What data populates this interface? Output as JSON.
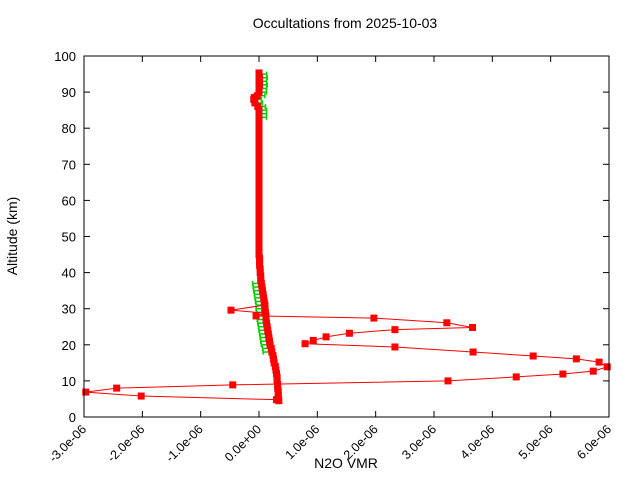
{
  "window": {
    "bg_color": "#ffffff"
  },
  "chart_data": {
    "type": "line",
    "title": "Occultations from 2025-10-03",
    "xlabel": "N2O VMR",
    "ylabel": "Altitude (km)",
    "xlim": [
      -3e-06,
      6e-06
    ],
    "ylim": [
      0,
      100
    ],
    "grid": false,
    "legend": "none",
    "axes_style": "boxed frame, inward mirrored ticks, x tick labels rotated 45deg",
    "x_tick_values": [
      -3e-06,
      -2e-06,
      -1e-06,
      0.0,
      1e-06,
      2e-06,
      3e-06,
      4e-06,
      5e-06,
      6e-06
    ],
    "x_tick_labels": [
      "-3.0e-06",
      "-2.0e-06",
      "-1.0e-06",
      "0.0e+00",
      "1.0e-06",
      "2.0e-06",
      "3.0e-06",
      "4.0e-06",
      "5.0e-06",
      "6.0e-06"
    ],
    "y_tick_values": [
      0,
      10,
      20,
      30,
      40,
      50,
      60,
      70,
      80,
      90,
      100
    ],
    "y_tick_labels": [
      "0",
      "10",
      "20",
      "30",
      "40",
      "50",
      "60",
      "70",
      "80",
      "90",
      "100"
    ],
    "colors": {
      "profile": "#ff0000",
      "error_bars": "#00cc00",
      "axis": "#000000"
    },
    "marker": "filled-square",
    "series": [
      {
        "name": "main-profile",
        "description": "dense retrieved N2O profile, points [altitude_km, vmr]",
        "color": "#ff0000",
        "points": [
          [
            95.3,
            0
          ],
          [
            95,
            0
          ],
          [
            94,
            1e-08
          ],
          [
            93,
            0
          ],
          [
            92,
            1e-08
          ],
          [
            91,
            0
          ],
          [
            90,
            0
          ],
          [
            89,
            -3e-08
          ],
          [
            88.5,
            -8e-08
          ],
          [
            88,
            -9e-08
          ],
          [
            87,
            -7e-08
          ],
          [
            86,
            -2e-08
          ],
          [
            85,
            0
          ],
          [
            84,
            0
          ],
          [
            83,
            0
          ],
          [
            82,
            0
          ],
          [
            81,
            0
          ],
          [
            80,
            0
          ],
          [
            79,
            0
          ],
          [
            78,
            0
          ],
          [
            77,
            0
          ],
          [
            76,
            0
          ],
          [
            75,
            0
          ],
          [
            74,
            0
          ],
          [
            73,
            0
          ],
          [
            72,
            0
          ],
          [
            71,
            0
          ],
          [
            70,
            0
          ],
          [
            69,
            0
          ],
          [
            68,
            0
          ],
          [
            67,
            0
          ],
          [
            66,
            0
          ],
          [
            65,
            0
          ],
          [
            64,
            0
          ],
          [
            63,
            0
          ],
          [
            62,
            0
          ],
          [
            61,
            0
          ],
          [
            60,
            0
          ],
          [
            59,
            0
          ],
          [
            58,
            0
          ],
          [
            57,
            0
          ],
          [
            56,
            0
          ],
          [
            55,
            0
          ],
          [
            54,
            0
          ],
          [
            53,
            0
          ],
          [
            52,
            0
          ],
          [
            51,
            0
          ],
          [
            50,
            0
          ],
          [
            49,
            0
          ],
          [
            48,
            0
          ],
          [
            47,
            0
          ],
          [
            46,
            0
          ],
          [
            45,
            0
          ],
          [
            44,
            1e-08
          ],
          [
            43,
            1e-08
          ],
          [
            42,
            1e-08
          ],
          [
            41,
            2e-08
          ],
          [
            40,
            2e-08
          ],
          [
            39,
            3e-08
          ],
          [
            38,
            3e-08
          ],
          [
            37,
            4e-08
          ],
          [
            36,
            5e-08
          ],
          [
            35,
            6e-08
          ],
          [
            34,
            7e-08
          ],
          [
            33,
            8e-08
          ],
          [
            32,
            9e-08
          ],
          [
            31,
            1e-07
          ],
          [
            30,
            1e-07
          ],
          [
            29,
            1.1e-07
          ],
          [
            28,
            1.2e-07
          ],
          [
            27,
            1.2e-07
          ],
          [
            26,
            1.3e-07
          ],
          [
            25,
            1.4e-07
          ],
          [
            24,
            1.5e-07
          ],
          [
            23,
            1.6e-07
          ],
          [
            22,
            1.7e-07
          ],
          [
            21,
            1.8e-07
          ],
          [
            20,
            1.9e-07
          ],
          [
            19,
            2.1e-07
          ],
          [
            18,
            2.2e-07
          ],
          [
            17,
            2.4e-07
          ],
          [
            16,
            2.5e-07
          ],
          [
            15,
            2.6e-07
          ],
          [
            14,
            2.8e-07
          ],
          [
            13,
            2.9e-07
          ],
          [
            12,
            3e-07
          ],
          [
            11,
            3.1e-07
          ],
          [
            10,
            3.1e-07
          ],
          [
            9,
            3.2e-07
          ],
          [
            8,
            3.2e-07
          ],
          [
            7,
            3.3e-07
          ],
          [
            6,
            3.3e-07
          ],
          [
            5,
            3.3e-07
          ],
          [
            4.5,
            3.4e-07
          ]
        ]
      },
      {
        "name": "noisy-profile",
        "description": "oscillating occultation profile, points [altitude_km, vmr]",
        "color": "#ff0000",
        "points": [
          [
            31.0,
            1e-07
          ],
          [
            29.6,
            -4.8e-07
          ],
          [
            28.8,
            1e-07
          ],
          [
            28.0,
            -5e-08
          ],
          [
            27.4,
            1.97e-06
          ],
          [
            26.1,
            3.22e-06
          ],
          [
            24.8,
            3.66e-06
          ],
          [
            24.2,
            2.33e-06
          ],
          [
            23.2,
            1.55e-06
          ],
          [
            22.2,
            1.15e-06
          ],
          [
            21.2,
            9.3e-07
          ],
          [
            20.3,
            7.9e-07
          ],
          [
            19.4,
            2.33e-06
          ],
          [
            18.0,
            3.67e-06
          ],
          [
            16.9,
            4.7e-06
          ],
          [
            16.1,
            5.44e-06
          ],
          [
            15.2,
            5.83e-06
          ],
          [
            13.9,
            5.97e-06
          ],
          [
            12.7,
            5.73e-06
          ],
          [
            11.9,
            5.21e-06
          ],
          [
            11.1,
            4.41e-06
          ],
          [
            10.0,
            3.24e-06
          ],
          [
            8.9,
            -4.5e-07
          ],
          [
            8.0,
            -2.44e-06
          ],
          [
            6.9,
            -2.97e-06
          ],
          [
            5.8,
            -2.02e-06
          ],
          [
            4.8,
            3e-07
          ]
        ]
      }
    ],
    "error_bars": {
      "name": "vmr-error-bars",
      "color": "#00cc00",
      "description": "horizontal uncertainty bars [altitude_km, vmr_lo, vmr_hi]",
      "bars": [
        [
          95,
          0,
          1.3e-07
        ],
        [
          94,
          1e-08,
          1.4e-07
        ],
        [
          93,
          0,
          1.3e-07
        ],
        [
          92,
          1e-08,
          1.4e-07
        ],
        [
          91,
          0,
          1.3e-07
        ],
        [
          90,
          0,
          1.3e-07
        ],
        [
          89,
          -3e-08,
          1e-07
        ],
        [
          88,
          -9e-08,
          4e-08
        ],
        [
          87,
          -7e-08,
          6e-08
        ],
        [
          86,
          -2e-08,
          1.1e-07
        ],
        [
          85,
          0,
          1.3e-07
        ],
        [
          84,
          0,
          1.3e-07
        ],
        [
          83,
          0,
          1.3e-07
        ],
        [
          37,
          -1.1e-07,
          4e-08
        ],
        [
          36,
          -1e-07,
          5e-08
        ],
        [
          35,
          -9e-08,
          6e-08
        ],
        [
          34,
          -8e-08,
          7e-08
        ],
        [
          33,
          -7e-08,
          8e-08
        ],
        [
          32,
          -6e-08,
          9e-08
        ],
        [
          31,
          -5e-08,
          1e-07
        ],
        [
          30,
          -5e-08,
          1e-07
        ],
        [
          29,
          -4e-08,
          1.1e-07
        ],
        [
          28,
          -3e-08,
          1.2e-07
        ],
        [
          27,
          -3e-08,
          1.2e-07
        ],
        [
          26,
          -2e-08,
          1.3e-07
        ],
        [
          25,
          -1e-08,
          1.4e-07
        ],
        [
          24,
          0,
          1.5e-07
        ],
        [
          23,
          1e-08,
          1.6e-07
        ],
        [
          22,
          2e-08,
          1.7e-07
        ],
        [
          21,
          3e-08,
          1.8e-07
        ],
        [
          20,
          4e-08,
          1.9e-07
        ],
        [
          19,
          6e-08,
          2.1e-07
        ],
        [
          18,
          7e-08,
          2.2e-07
        ]
      ]
    }
  }
}
